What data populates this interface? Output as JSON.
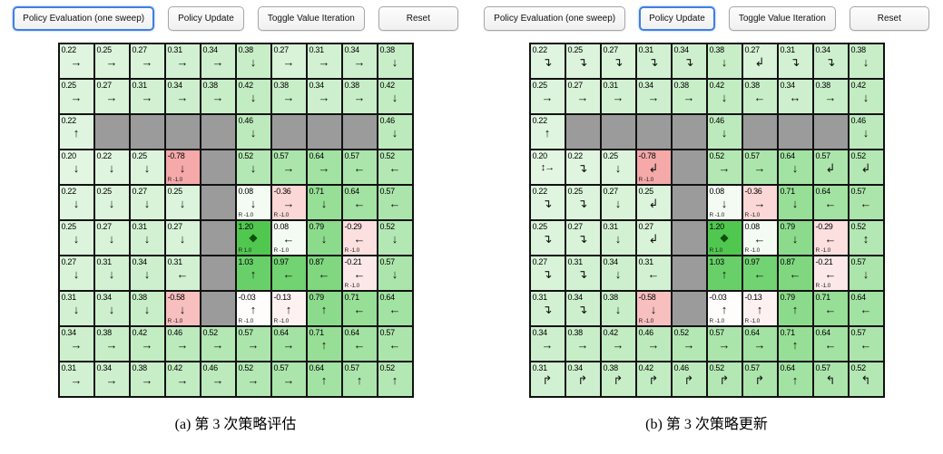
{
  "buttons": [
    "Policy Evaluation (one sweep)",
    "Policy Update",
    "Toggle Value Iteration",
    "Reset"
  ],
  "colors": {
    "active_border": "#3f7fe0",
    "wall": "#9b9b9b",
    "grid_line": "#111111",
    "goal_green": "#50c850",
    "penalty_pink": "#f6a9a9"
  },
  "panels": [
    {
      "id": "a",
      "active_button": 0,
      "caption": "(a) 第 3 次策略评估",
      "grid": [
        [
          [
            "0.22",
            "→"
          ],
          [
            "0.25",
            "→"
          ],
          [
            "0.27",
            "→"
          ],
          [
            "0.31",
            "→"
          ],
          [
            "0.34",
            "→"
          ],
          [
            "0.38",
            "↓"
          ],
          [
            "0.27",
            "→"
          ],
          [
            "0.31",
            "→"
          ],
          [
            "0.34",
            "→"
          ],
          [
            "0.38",
            "↓"
          ]
        ],
        [
          [
            "0.25",
            "→"
          ],
          [
            "0.27",
            "→"
          ],
          [
            "0.31",
            "→"
          ],
          [
            "0.34",
            "→"
          ],
          [
            "0.38",
            "→"
          ],
          [
            "0.42",
            "↓"
          ],
          [
            "0.38",
            "→"
          ],
          [
            "0.34",
            "→"
          ],
          [
            "0.38",
            "→"
          ],
          [
            "0.42",
            "↓"
          ]
        ],
        [
          [
            "0.22",
            "↑"
          ],
          "W",
          "W",
          "W",
          "W",
          [
            "0.46",
            "↓"
          ],
          "W",
          "W",
          "W",
          [
            "0.46",
            "↓"
          ]
        ],
        [
          [
            "0.20",
            "↓"
          ],
          [
            "0.22",
            "↓"
          ],
          [
            "0.25",
            "↓"
          ],
          [
            "-0.78",
            "↓",
            "R -1.0"
          ],
          "W",
          [
            "0.52",
            "↓"
          ],
          [
            "0.57",
            "→"
          ],
          [
            "0.64",
            "→"
          ],
          [
            "0.57",
            "←"
          ],
          [
            "0.52",
            "←"
          ]
        ],
        [
          [
            "0.22",
            "↓"
          ],
          [
            "0.25",
            "↓"
          ],
          [
            "0.27",
            "↓"
          ],
          [
            "0.25",
            "↓"
          ],
          "W",
          [
            "0.08",
            "↓",
            "R -1.0"
          ],
          [
            "-0.36",
            "→",
            "R -1.0"
          ],
          [
            "0.71",
            "↓"
          ],
          [
            "0.64",
            "←"
          ],
          [
            "0.57",
            "←"
          ]
        ],
        [
          [
            "0.25",
            "↓"
          ],
          [
            "0.27",
            "↓"
          ],
          [
            "0.31",
            "↓"
          ],
          [
            "0.27",
            "↓"
          ],
          "W",
          [
            "1.20",
            "◆",
            "R 1.0"
          ],
          [
            "0.08",
            "←",
            "R -1.0"
          ],
          [
            "0.79",
            "↓"
          ],
          [
            "-0.29",
            "←",
            "R -1.0"
          ],
          [
            "0.52",
            "↓"
          ]
        ],
        [
          [
            "0.27",
            "↓"
          ],
          [
            "0.31",
            "↓"
          ],
          [
            "0.34",
            "↓"
          ],
          [
            "0.31",
            "←"
          ],
          "W",
          [
            "1.03",
            "↑"
          ],
          [
            "0.97",
            "←"
          ],
          [
            "0.87",
            "←"
          ],
          [
            "-0.21",
            "←",
            "R -1.0"
          ],
          [
            "0.57",
            "↓"
          ]
        ],
        [
          [
            "0.31",
            "↓"
          ],
          [
            "0.34",
            "↓"
          ],
          [
            "0.38",
            "↓"
          ],
          [
            "-0.58",
            "↓",
            "R -1.0"
          ],
          "W",
          [
            "-0.03",
            "↑",
            "R -1.0"
          ],
          [
            "-0.13",
            "↑",
            "R -1.0"
          ],
          [
            "0.79",
            "↑"
          ],
          [
            "0.71",
            "←"
          ],
          [
            "0.64",
            "←"
          ]
        ],
        [
          [
            "0.34",
            "→"
          ],
          [
            "0.38",
            "→"
          ],
          [
            "0.42",
            "→"
          ],
          [
            "0.46",
            "→"
          ],
          [
            "0.52",
            "→"
          ],
          [
            "0.57",
            "→"
          ],
          [
            "0.64",
            "→"
          ],
          [
            "0.71",
            "↑"
          ],
          [
            "0.64",
            "←"
          ],
          [
            "0.57",
            "←"
          ]
        ],
        [
          [
            "0.31",
            "→"
          ],
          [
            "0.34",
            "→"
          ],
          [
            "0.38",
            "→"
          ],
          [
            "0.42",
            "→"
          ],
          [
            "0.46",
            "→"
          ],
          [
            "0.52",
            "→"
          ],
          [
            "0.57",
            "→"
          ],
          [
            "0.64",
            "↑"
          ],
          [
            "0.57",
            "↑"
          ],
          [
            "0.52",
            "↑"
          ]
        ]
      ]
    },
    {
      "id": "b",
      "active_button": 1,
      "caption": "(b) 第 3 次策略更新",
      "grid": [
        [
          [
            "0.22",
            "↴"
          ],
          [
            "0.25",
            "↴"
          ],
          [
            "0.27",
            "↴"
          ],
          [
            "0.31",
            "↴"
          ],
          [
            "0.34",
            "↴"
          ],
          [
            "0.38",
            "↓"
          ],
          [
            "0.27",
            "↲"
          ],
          [
            "0.31",
            "↴"
          ],
          [
            "0.34",
            "↴"
          ],
          [
            "0.38",
            "↓"
          ]
        ],
        [
          [
            "0.25",
            "→"
          ],
          [
            "0.27",
            "→"
          ],
          [
            "0.31",
            "→"
          ],
          [
            "0.34",
            "→"
          ],
          [
            "0.38",
            "→"
          ],
          [
            "0.42",
            "↓"
          ],
          [
            "0.38",
            "←"
          ],
          [
            "0.34",
            "↔"
          ],
          [
            "0.38",
            "→"
          ],
          [
            "0.42",
            "↓"
          ]
        ],
        [
          [
            "0.22",
            "↑"
          ],
          "W",
          "W",
          "W",
          "W",
          [
            "0.46",
            "↓"
          ],
          "W",
          "W",
          "W",
          [
            "0.46",
            "↓"
          ]
        ],
        [
          [
            "0.20",
            "↕→"
          ],
          [
            "0.22",
            "↴"
          ],
          [
            "0.25",
            "↓"
          ],
          [
            "-0.78",
            "↲",
            "R -1.0"
          ],
          "W",
          [
            "0.52",
            "→"
          ],
          [
            "0.57",
            "→"
          ],
          [
            "0.64",
            "↓"
          ],
          [
            "0.57",
            "↲"
          ],
          [
            "0.52",
            "↲"
          ]
        ],
        [
          [
            "0.22",
            "↴"
          ],
          [
            "0.25",
            "↴"
          ],
          [
            "0.27",
            "↓"
          ],
          [
            "0.25",
            "↲"
          ],
          "W",
          [
            "0.08",
            "↓",
            "R -1.0"
          ],
          [
            "-0.36",
            "→",
            "R -1.0"
          ],
          [
            "0.71",
            "↓"
          ],
          [
            "0.64",
            "←"
          ],
          [
            "0.57",
            "←"
          ]
        ],
        [
          [
            "0.25",
            "↴"
          ],
          [
            "0.27",
            "↴"
          ],
          [
            "0.31",
            "↓"
          ],
          [
            "0.27",
            "↲"
          ],
          "W",
          [
            "1.20",
            "◆",
            "R 1.0"
          ],
          [
            "0.08",
            "←",
            "R -1.0"
          ],
          [
            "0.79",
            "↓"
          ],
          [
            "-0.29",
            "←",
            "R -1.0"
          ],
          [
            "0.52",
            "↕"
          ]
        ],
        [
          [
            "0.27",
            "↴"
          ],
          [
            "0.31",
            "↴"
          ],
          [
            "0.34",
            "↓"
          ],
          [
            "0.31",
            "←"
          ],
          "W",
          [
            "1.03",
            "↑"
          ],
          [
            "0.97",
            "←"
          ],
          [
            "0.87",
            "←"
          ],
          [
            "-0.21",
            "←",
            "R -1.0"
          ],
          [
            "0.57",
            "↓"
          ]
        ],
        [
          [
            "0.31",
            "↴"
          ],
          [
            "0.34",
            "↴"
          ],
          [
            "0.38",
            "↓"
          ],
          [
            "-0.58",
            "↓",
            "R -1.0"
          ],
          "W",
          [
            "-0.03",
            "↑",
            "R -1.0"
          ],
          [
            "-0.13",
            "↑",
            "R -1.0"
          ],
          [
            "0.79",
            "↑"
          ],
          [
            "0.71",
            "←"
          ],
          [
            "0.64",
            "←"
          ]
        ],
        [
          [
            "0.34",
            "→"
          ],
          [
            "0.38",
            "→"
          ],
          [
            "0.42",
            "→"
          ],
          [
            "0.46",
            "→"
          ],
          [
            "0.52",
            "→"
          ],
          [
            "0.57",
            "→"
          ],
          [
            "0.64",
            "→"
          ],
          [
            "0.71",
            "↑"
          ],
          [
            "0.64",
            "←"
          ],
          [
            "0.57",
            "←"
          ]
        ],
        [
          [
            "0.31",
            "↱"
          ],
          [
            "0.34",
            "↱"
          ],
          [
            "0.38",
            "↱"
          ],
          [
            "0.42",
            "↱"
          ],
          [
            "0.46",
            "↱"
          ],
          [
            "0.52",
            "↱"
          ],
          [
            "0.57",
            "↱"
          ],
          [
            "0.64",
            "↑"
          ],
          [
            "0.57",
            "↰"
          ],
          [
            "0.52",
            "↰"
          ]
        ]
      ]
    }
  ]
}
